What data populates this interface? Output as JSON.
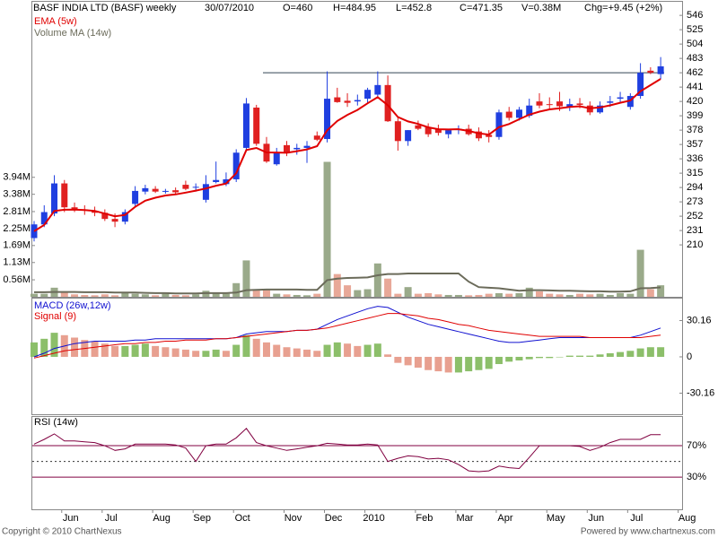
{
  "chart_data": {
    "type": "candlestick",
    "title": "BASF INDIA LTD (BASF) weekly",
    "date": "30/07/2010",
    "quote_labels": [
      "O=460",
      "H=484.95",
      "L=452.8",
      "C=471.35",
      "V=0.38M",
      "Chg=+9.45 (+2%)"
    ],
    "categories": [
      null,
      null,
      null,
      "Jun",
      null,
      null,
      null,
      "Jul",
      null,
      null,
      null,
      null,
      "Aug",
      null,
      null,
      null,
      "Sep",
      null,
      null,
      null,
      "Oct",
      null,
      null,
      null,
      null,
      "Nov",
      null,
      null,
      null,
      "Dec",
      null,
      null,
      null,
      "2010",
      null,
      null,
      null,
      null,
      "Feb",
      null,
      null,
      null,
      "Mar",
      null,
      null,
      null,
      "Apr",
      null,
      null,
      null,
      null,
      "May",
      null,
      null,
      null,
      "Jun",
      null,
      null,
      null,
      "Jul",
      null,
      null,
      null,
      null,
      "Aug"
    ],
    "open": [
      220,
      240,
      256,
      300,
      265,
      262,
      260,
      257,
      248,
      244,
      270,
      288,
      292,
      288,
      290,
      298,
      294,
      276,
      302,
      299,
      306,
      352,
      411,
      358,
      328,
      356,
      350,
      352,
      370,
      365,
      426,
      421,
      420,
      424,
      430,
      444,
      391,
      362,
      385,
      382,
      380,
      372,
      378,
      380,
      376,
      371,
      368,
      405,
      396,
      399,
      420,
      416,
      420,
      411,
      417,
      414,
      404,
      418,
      424,
      412,
      428,
      465,
      460,
      null,
      null
    ],
    "high": [
      245,
      268,
      312,
      305,
      272,
      268,
      266,
      262,
      256,
      262,
      296,
      298,
      296,
      292,
      294,
      304,
      300,
      312,
      332,
      316,
      350,
      425,
      415,
      368,
      352,
      362,
      358,
      362,
      376,
      464,
      440,
      432,
      430,
      440,
      464,
      458,
      398,
      378,
      392,
      388,
      386,
      380,
      385,
      386,
      382,
      378,
      408,
      412,
      412,
      424,
      432,
      426,
      434,
      424,
      425,
      420,
      420,
      428,
      434,
      432,
      476,
      470,
      484.95,
      null,
      null
    ],
    "low": [
      215,
      236,
      252,
      258,
      258,
      254,
      252,
      245,
      236,
      240,
      265,
      284,
      286,
      285,
      284,
      290,
      288,
      272,
      300,
      296,
      302,
      348,
      355,
      330,
      326,
      340,
      342,
      330,
      362,
      360,
      418,
      412,
      414,
      418,
      425,
      390,
      348,
      355,
      378,
      368,
      370,
      366,
      372,
      370,
      362,
      360,
      364,
      392,
      392,
      396,
      410,
      408,
      406,
      406,
      410,
      400,
      402,
      412,
      418,
      408,
      424,
      460,
      452.8,
      null,
      null
    ],
    "close": [
      240,
      258,
      300,
      265,
      262,
      260,
      257,
      248,
      244,
      258,
      289,
      293,
      288,
      289,
      287,
      292,
      295,
      299,
      305,
      306,
      345,
      417,
      358,
      332,
      345,
      344,
      352,
      355,
      364,
      424,
      419,
      418,
      422,
      437,
      444,
      391,
      362,
      378,
      380,
      372,
      374,
      378,
      380,
      372,
      366,
      368,
      404,
      396,
      408,
      414,
      414,
      415,
      413,
      416,
      415,
      404,
      414,
      420,
      426,
      428,
      462,
      462,
      471.35,
      null,
      null
    ],
    "up_color": "#1f3fe0",
    "down_color": "#e02020",
    "ylim": [
      134,
      558
    ],
    "yticks": [
      546,
      525,
      504,
      483,
      462,
      441,
      420,
      399,
      378,
      357,
      336,
      315,
      294,
      273,
      252,
      231,
      210
    ],
    "ema": {
      "name": "EMA (5w)",
      "color": "#e00000",
      "values": [
        230,
        239.3,
        259.6,
        261.4,
        261.6,
        261.1,
        259.7,
        255.8,
        251.9,
        253.9,
        265.6,
        274.7,
        279.1,
        282.4,
        283.9,
        286.6,
        289.4,
        292.6,
        296.7,
        299.8,
        314.9,
        348.9,
        351.9,
        345.3,
        345.2,
        344.8,
        347.2,
        349.8,
        354.5,
        377.7,
        391.4,
        400.3,
        407.5,
        417.3,
        426.2,
        414.5,
        397,
        390.7,
        387.1,
        382.1,
        379.4,
        378.9,
        379.3,
        376.9,
        373.3,
        371.5,
        382.3,
        386.9,
        393.9,
        400.6,
        405.1,
        408.4,
        409.9,
        411.9,
        412.9,
        409.9,
        411.3,
        414.2,
        418.1,
        421.4,
        434.9,
        443.9,
        453,
        null,
        null
      ]
    },
    "hline": {
      "value": 462,
      "color": "#334455"
    },
    "volume": {
      "values": [
        0.1,
        0.1,
        0.3,
        0.18,
        0.08,
        0.06,
        0.05,
        0.08,
        0.05,
        0.12,
        0.1,
        0.08,
        0.05,
        0.1,
        0.06,
        0.05,
        0.08,
        0.2,
        0.12,
        0.1,
        0.45,
        1.2,
        0.25,
        0.22,
        0.1,
        0.08,
        0.06,
        0.05,
        0.1,
        4.45,
        0.75,
        0.38,
        0.22,
        0.25,
        1.1,
        0.6,
        0.1,
        0.32,
        0.1,
        0.12,
        0.08,
        0.06,
        0.06,
        0.05,
        0.06,
        0.1,
        0.12,
        0.1,
        0.12,
        0.3,
        0.18,
        0.1,
        0.08,
        0.06,
        0.1,
        0.08,
        0.1,
        0.06,
        0.12,
        0.1,
        1.55,
        0.25,
        0.38,
        null,
        null
      ],
      "up_color": "#9aaa8a",
      "down_color": "#e8a898",
      "ylim": [
        0,
        9.55
      ],
      "yticks": [
        {
          "value": 0.56,
          "label": "0.56M"
        },
        {
          "value": 1.13,
          "label": "1.13M"
        },
        {
          "value": 1.69,
          "label": "1.69M"
        },
        {
          "value": 2.25,
          "label": "2.25M"
        },
        {
          "value": 2.81,
          "label": "2.81M"
        },
        {
          "value": 3.38,
          "label": "3.38M"
        },
        {
          "value": 3.94,
          "label": "3.94M"
        }
      ],
      "ma": {
        "name": "Volume MA (14w)",
        "color": "#6b6b5a",
        "values": [
          0.15,
          0.15,
          0.16,
          0.16,
          0.16,
          0.15,
          0.15,
          0.15,
          0.14,
          0.14,
          0.14,
          0.13,
          0.12,
          0.12,
          0.11,
          0.11,
          0.11,
          0.12,
          0.12,
          0.12,
          0.14,
          0.22,
          0.23,
          0.24,
          0.24,
          0.24,
          0.24,
          0.23,
          0.23,
          0.55,
          0.6,
          0.62,
          0.63,
          0.64,
          0.71,
          0.75,
          0.75,
          0.77,
          0.77,
          0.77,
          0.77,
          0.77,
          0.77,
          0.5,
          0.32,
          0.3,
          0.28,
          0.24,
          0.2,
          0.22,
          0.22,
          0.21,
          0.2,
          0.2,
          0.19,
          0.18,
          0.18,
          0.17,
          0.17,
          0.18,
          0.28,
          0.29,
          0.31,
          null,
          null
        ]
      }
    },
    "macd": {
      "ylim": [
        -47.7,
        48.4
      ],
      "yticks": [
        30.16,
        0,
        -30.16
      ],
      "series": [
        {
          "name": "MACD (26w,12w)",
          "color": "#1010d0",
          "values": [
            0,
            3,
            7,
            9,
            11,
            12,
            13,
            13,
            13,
            13,
            14,
            14,
            15,
            15,
            15,
            15,
            15,
            15,
            15,
            15,
            16,
            19,
            20,
            21,
            21,
            21,
            22,
            22,
            23,
            27,
            31,
            34,
            37,
            40,
            42,
            41,
            37,
            33,
            30,
            27,
            25,
            23,
            21,
            19,
            17,
            15,
            13,
            12,
            12,
            13,
            14,
            15,
            16,
            16,
            16,
            16,
            16,
            16,
            16,
            16,
            18,
            21,
            24,
            null,
            null
          ]
        },
        {
          "name": "Signal (9)",
          "color": "#e00000",
          "values": [
            -1,
            1,
            3,
            5,
            6,
            7,
            8,
            9,
            10,
            11,
            11,
            12,
            12,
            13,
            13,
            14,
            14,
            14,
            15,
            15,
            16,
            17,
            18,
            19,
            20,
            21,
            22,
            22,
            23,
            24,
            26,
            28,
            30,
            32,
            34,
            36,
            36,
            35,
            34,
            32,
            31,
            29,
            27,
            26,
            24,
            22,
            21,
            20,
            19,
            18,
            17,
            17,
            17,
            17,
            17,
            16,
            16,
            16,
            16,
            16,
            16,
            17,
            18,
            null,
            null
          ]
        }
      ],
      "histogram": {
        "values": [
          12,
          15,
          20,
          18,
          16,
          14,
          13,
          11,
          9,
          9,
          10,
          11,
          9,
          8,
          7,
          6,
          5,
          5,
          6,
          5,
          10,
          18,
          15,
          12,
          10,
          8,
          7,
          6,
          5,
          10,
          12,
          11,
          9,
          10,
          11,
          2,
          -5,
          -7,
          -9,
          -11,
          -12,
          -13,
          -13,
          -12,
          -11,
          -10,
          -6,
          -4,
          -3,
          -2,
          -1,
          -1,
          0,
          1,
          1,
          1,
          2,
          3,
          4,
          5,
          7,
          8,
          8,
          null,
          null
        ],
        "up_color": "#8cbf6a",
        "down_color": "#e8a090"
      }
    },
    "rsi": {
      "ylim": [
        -11,
        106.6
      ],
      "yticks": [
        {
          "value": 70,
          "label": "70%"
        },
        {
          "value": 30,
          "label": "30%"
        }
      ],
      "midline": 50,
      "level_color": "#800040",
      "series": {
        "name": "RSI (14w)",
        "color": "#800040",
        "values": [
          72,
          78,
          85,
          76,
          76,
          75,
          74,
          70,
          64,
          66,
          72,
          72,
          72,
          72,
          71,
          67,
          50,
          70,
          72,
          72,
          80,
          92,
          74,
          70,
          67,
          64,
          66,
          68,
          70,
          73,
          72,
          71,
          71,
          72,
          71,
          50,
          54,
          57,
          56,
          53,
          54,
          52,
          46,
          38,
          37,
          38,
          44,
          42,
          41,
          55,
          70,
          70,
          70,
          70,
          69,
          64,
          68,
          74,
          78,
          78,
          78,
          84,
          84,
          null,
          null
        ]
      }
    }
  },
  "footer": {
    "copyright": "Copyright © 2010 ChartNexus",
    "powered_by": "Powered by www.chartnexus.com"
  }
}
